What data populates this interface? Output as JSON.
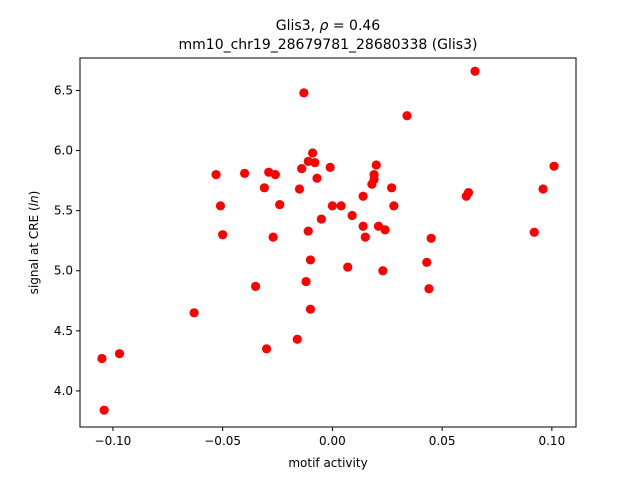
{
  "chart_data": {
    "type": "scatter",
    "title_prefix": "Glis3, ",
    "title_rho": "ρ",
    "title_suffix": " = 0.46",
    "subtitle": "mm10_chr19_28679781_28680338 (Glis3)",
    "xlabel": "motif activity",
    "ylabel_prefix": "signal at CRE (",
    "ylabel_italic": "ln",
    "ylabel_suffix": ")",
    "xlim": [
      -0.115,
      0.111
    ],
    "ylim": [
      3.7,
      6.77
    ],
    "x_ticks": [
      -0.1,
      -0.05,
      0.0,
      0.05,
      0.1
    ],
    "x_tick_labels": [
      "−0.10",
      "−0.05",
      "0.00",
      "0.05",
      "0.10"
    ],
    "y_ticks": [
      4.0,
      4.5,
      5.0,
      5.5,
      6.0,
      6.5
    ],
    "y_tick_labels": [
      "4.0",
      "4.5",
      "5.0",
      "5.5",
      "6.0",
      "6.5"
    ],
    "grid": false,
    "marker_color": "#ff0000",
    "points": [
      {
        "x": -0.104,
        "y": 3.84
      },
      {
        "x": -0.105,
        "y": 4.27
      },
      {
        "x": -0.097,
        "y": 4.31
      },
      {
        "x": -0.063,
        "y": 4.65
      },
      {
        "x": -0.053,
        "y": 5.8
      },
      {
        "x": -0.051,
        "y": 5.54
      },
      {
        "x": -0.05,
        "y": 5.3
      },
      {
        "x": -0.04,
        "y": 5.81
      },
      {
        "x": -0.035,
        "y": 4.87
      },
      {
        "x": -0.031,
        "y": 5.69
      },
      {
        "x": -0.03,
        "y": 4.35
      },
      {
        "x": -0.029,
        "y": 5.82
      },
      {
        "x": -0.027,
        "y": 5.28
      },
      {
        "x": -0.026,
        "y": 5.8
      },
      {
        "x": -0.024,
        "y": 5.55
      },
      {
        "x": -0.016,
        "y": 4.43
      },
      {
        "x": -0.015,
        "y": 5.68
      },
      {
        "x": -0.014,
        "y": 5.85
      },
      {
        "x": -0.013,
        "y": 6.48
      },
      {
        "x": -0.012,
        "y": 4.91
      },
      {
        "x": -0.011,
        "y": 5.91
      },
      {
        "x": -0.011,
        "y": 5.33
      },
      {
        "x": -0.01,
        "y": 5.09
      },
      {
        "x": -0.01,
        "y": 4.68
      },
      {
        "x": -0.009,
        "y": 5.98
      },
      {
        "x": -0.008,
        "y": 5.9
      },
      {
        "x": -0.007,
        "y": 5.77
      },
      {
        "x": -0.005,
        "y": 5.43
      },
      {
        "x": -0.001,
        "y": 5.86
      },
      {
        "x": 0.0,
        "y": 5.54
      },
      {
        "x": 0.004,
        "y": 5.54
      },
      {
        "x": 0.007,
        "y": 5.03
      },
      {
        "x": 0.009,
        "y": 5.46
      },
      {
        "x": 0.014,
        "y": 5.62
      },
      {
        "x": 0.014,
        "y": 5.37
      },
      {
        "x": 0.015,
        "y": 5.28
      },
      {
        "x": 0.018,
        "y": 5.72
      },
      {
        "x": 0.019,
        "y": 5.76
      },
      {
        "x": 0.019,
        "y": 5.8
      },
      {
        "x": 0.02,
        "y": 5.88
      },
      {
        "x": 0.021,
        "y": 5.37
      },
      {
        "x": 0.023,
        "y": 5.0
      },
      {
        "x": 0.024,
        "y": 5.34
      },
      {
        "x": 0.027,
        "y": 5.69
      },
      {
        "x": 0.028,
        "y": 5.54
      },
      {
        "x": 0.034,
        "y": 6.29
      },
      {
        "x": 0.043,
        "y": 5.07
      },
      {
        "x": 0.044,
        "y": 4.85
      },
      {
        "x": 0.045,
        "y": 5.27
      },
      {
        "x": 0.061,
        "y": 5.62
      },
      {
        "x": 0.062,
        "y": 5.65
      },
      {
        "x": 0.065,
        "y": 6.66
      },
      {
        "x": 0.092,
        "y": 5.32
      },
      {
        "x": 0.096,
        "y": 5.68
      },
      {
        "x": 0.101,
        "y": 5.87
      }
    ]
  }
}
